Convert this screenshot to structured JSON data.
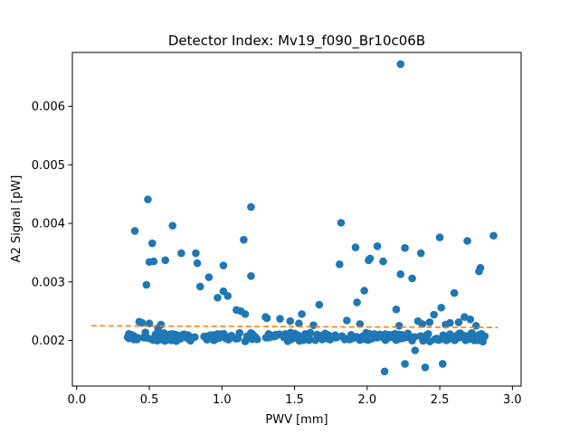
{
  "chart_data": {
    "type": "scatter",
    "title": "Detector Index: Mv19_f090_Br10c06B",
    "xlabel": "PWV [mm]",
    "ylabel": "A2 Signal [pW]",
    "xlim": [
      -0.03,
      3.06
    ],
    "ylim": [
      0.00122,
      0.00692
    ],
    "xticks": [
      0.0,
      0.5,
      1.0,
      1.5,
      2.0,
      2.5,
      3.0
    ],
    "xtick_labels": [
      "0.0",
      "0.5",
      "1.0",
      "1.5",
      "2.0",
      "2.5",
      "3.0"
    ],
    "yticks": [
      0.002,
      0.003,
      0.004,
      0.005,
      0.006
    ],
    "ytick_labels": [
      "0.002",
      "0.003",
      "0.004",
      "0.005",
      "0.006"
    ],
    "grid": false,
    "legend": "none",
    "series": [
      {
        "name": "measurements",
        "color": "#1f77b4",
        "x": [
          2.23,
          0.49,
          1.2,
          1.82,
          0.4,
          0.66,
          2.87,
          0.52,
          2.69,
          1.15,
          2.5,
          2.07,
          1.92,
          2.26,
          0.5,
          2.01,
          2.37,
          0.72,
          0.82,
          2.11,
          2.02,
          0.61,
          1.81,
          0.83,
          0.53,
          1.01,
          2.78,
          2.77,
          0.91,
          1.2,
          2.23,
          0.48,
          0.85,
          1.01,
          2.31,
          1.98,
          0.97,
          1.04,
          2.6,
          1.93,
          1.67,
          2.2,
          2.51,
          2.46,
          1.1,
          1.13,
          1.16,
          1.55,
          1.3,
          1.31,
          1.4,
          1.47,
          1.53,
          1.63,
          2.71,
          2.67,
          2.63,
          2.75,
          0.43,
          0.45,
          0.5,
          0.56,
          0.58,
          1.86,
          1.95,
          2.22,
          2.35,
          2.38,
          2.43,
          2.54,
          2.57,
          0.36,
          0.46,
          0.55,
          0.65,
          0.78,
          0.92,
          1.19,
          1.71,
          1.78,
          2.05,
          2.14,
          2.28,
          2.81,
          2.79,
          2.33,
          2.52,
          2.12,
          2.4,
          2.26
        ],
        "y": [
          0.00672,
          0.00441,
          0.00428,
          0.00401,
          0.00387,
          0.00396,
          0.00379,
          0.00366,
          0.0037,
          0.00372,
          0.00376,
          0.00361,
          0.00359,
          0.00358,
          0.00334,
          0.00337,
          0.00349,
          0.00349,
          0.00349,
          0.00335,
          0.0034,
          0.00337,
          0.0033,
          0.00332,
          0.00335,
          0.00328,
          0.00324,
          0.00318,
          0.00308,
          0.0031,
          0.00313,
          0.00295,
          0.00292,
          0.00284,
          0.00306,
          0.00285,
          0.00273,
          0.00276,
          0.00281,
          0.00265,
          0.00261,
          0.00253,
          0.00256,
          0.00244,
          0.00252,
          0.0025,
          0.00245,
          0.00245,
          0.0024,
          0.00238,
          0.00237,
          0.00233,
          0.00229,
          0.00226,
          0.00236,
          0.0024,
          0.00231,
          0.00225,
          0.00232,
          0.0023,
          0.00229,
          0.00221,
          0.00227,
          0.00234,
          0.00228,
          0.00225,
          0.00233,
          0.00228,
          0.00231,
          0.00227,
          0.0023,
          0.0021,
          0.00205,
          0.00212,
          0.00208,
          0.00206,
          0.00209,
          0.00207,
          0.00212,
          0.00209,
          0.00211,
          0.00209,
          0.00212,
          0.00207,
          0.00204,
          0.00183,
          0.0016,
          0.00147,
          0.00154,
          0.0016
        ],
        "band": {
          "description": "dense cluster of points between PWV 0.35 and 2.8 mm",
          "x_range": [
            0.35,
            2.8
          ],
          "y_center": 0.00206,
          "y_spread": 6e-05
        }
      },
      {
        "name": "fit",
        "type": "dashed-line",
        "color": "#ff7f0e",
        "x": [
          0.1,
          2.9
        ],
        "y": [
          0.00225,
          0.00222
        ]
      }
    ]
  }
}
